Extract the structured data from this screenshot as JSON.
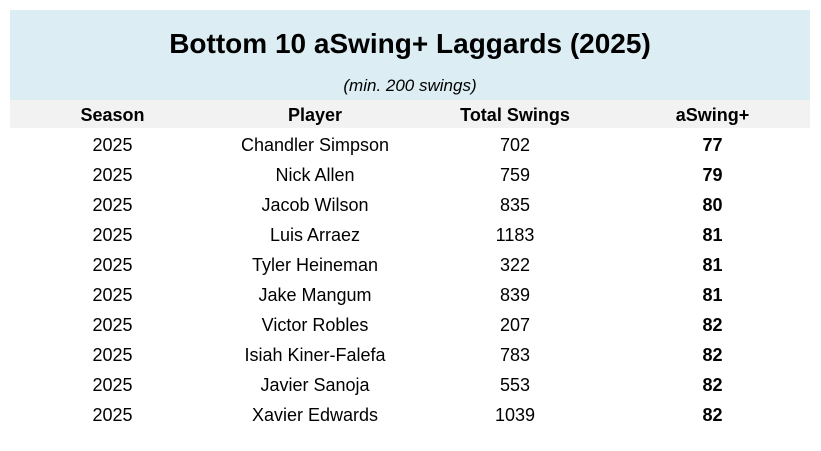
{
  "header": {
    "title": "Bottom 10 aSwing+ Laggards (2025)",
    "subtitle": "(min. 200 swings)"
  },
  "table": {
    "columns": [
      "Season",
      "Player",
      "Total Swings",
      "aSwing+"
    ],
    "rows": [
      [
        "2025",
        "Chandler Simpson",
        "702",
        "77"
      ],
      [
        "2025",
        "Nick Allen",
        "759",
        "79"
      ],
      [
        "2025",
        "Jacob Wilson",
        "835",
        "80"
      ],
      [
        "2025",
        "Luis Arraez",
        "1183",
        "81"
      ],
      [
        "2025",
        "Tyler Heineman",
        "322",
        "81"
      ],
      [
        "2025",
        "Jake Mangum",
        "839",
        "81"
      ],
      [
        "2025",
        "Victor Robles",
        "207",
        "82"
      ],
      [
        "2025",
        "Isiah Kiner-Falefa",
        "783",
        "82"
      ],
      [
        "2025",
        "Javier Sanoja",
        "553",
        "82"
      ],
      [
        "2025",
        "Xavier Edwards",
        "1039",
        "82"
      ]
    ]
  }
}
